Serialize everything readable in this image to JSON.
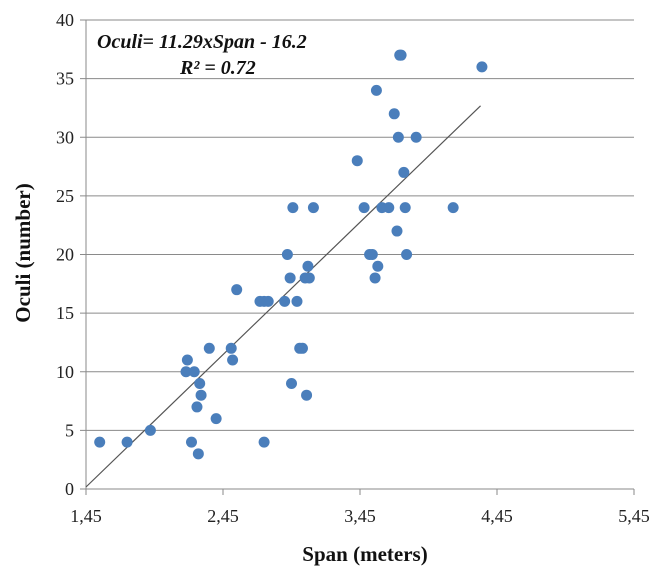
{
  "chart_data": {
    "type": "scatter",
    "title": "",
    "xlabel": "Span (meters)",
    "ylabel": "Oculi (number)",
    "xlim": [
      1.45,
      5.45
    ],
    "ylim": [
      0,
      40
    ],
    "x_ticks": [
      "1,45",
      "2,45",
      "3,45",
      "4,45",
      "5,45"
    ],
    "y_ticks": [
      "0",
      "5",
      "10",
      "15",
      "20",
      "25",
      "30",
      "35",
      "40"
    ],
    "grid": "horizontal",
    "point_color": "#4a7ebb",
    "annotations": {
      "equation": "Oculi= 11.29xSpan - 16.2",
      "r_squared": "R² = 0.72"
    },
    "trendline": {
      "slope": 11.29,
      "intercept": -16.2,
      "x_start": 1.45,
      "x_end": 4.33
    },
    "series": [
      {
        "points": [
          [
            1.55,
            4
          ],
          [
            1.75,
            4
          ],
          [
            1.92,
            5
          ],
          [
            2.18,
            10
          ],
          [
            2.19,
            11
          ],
          [
            2.22,
            4
          ],
          [
            2.24,
            10
          ],
          [
            2.26,
            7
          ],
          [
            2.27,
            3
          ],
          [
            2.28,
            9
          ],
          [
            2.29,
            8
          ],
          [
            2.35,
            12
          ],
          [
            2.4,
            6
          ],
          [
            2.51,
            12
          ],
          [
            2.52,
            11
          ],
          [
            2.55,
            17
          ],
          [
            2.72,
            16
          ],
          [
            2.75,
            16
          ],
          [
            2.78,
            16
          ],
          [
            2.75,
            4
          ],
          [
            2.9,
            16
          ],
          [
            2.92,
            20
          ],
          [
            2.94,
            18
          ],
          [
            2.95,
            9
          ],
          [
            2.96,
            24
          ],
          [
            2.99,
            16
          ],
          [
            3.01,
            12
          ],
          [
            3.03,
            12
          ],
          [
            3.05,
            18
          ],
          [
            3.07,
            19
          ],
          [
            3.08,
            18
          ],
          [
            3.06,
            8
          ],
          [
            3.11,
            24
          ],
          [
            3.43,
            28
          ],
          [
            3.48,
            24
          ],
          [
            3.52,
            20
          ],
          [
            3.54,
            20
          ],
          [
            3.56,
            18
          ],
          [
            3.57,
            34
          ],
          [
            3.58,
            19
          ],
          [
            3.61,
            24
          ],
          [
            3.66,
            24
          ],
          [
            3.7,
            32
          ],
          [
            3.72,
            22
          ],
          [
            3.73,
            30
          ],
          [
            3.74,
            37
          ],
          [
            3.75,
            37
          ],
          [
            3.77,
            27
          ],
          [
            3.78,
            24
          ],
          [
            3.79,
            20
          ],
          [
            3.86,
            30
          ],
          [
            4.13,
            24
          ],
          [
            4.34,
            36
          ]
        ]
      }
    ]
  }
}
